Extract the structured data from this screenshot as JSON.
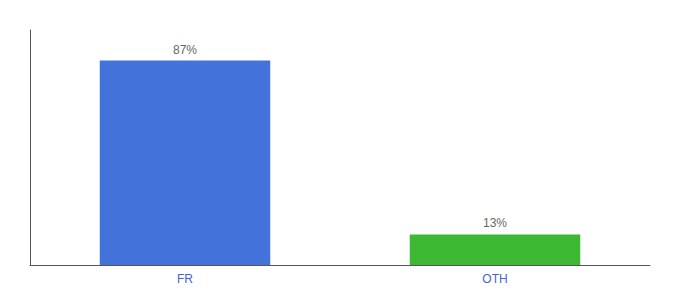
{
  "chart_data": {
    "type": "bar",
    "categories": [
      "FR",
      "OTH"
    ],
    "values": [
      87,
      13
    ],
    "value_labels": [
      "87%",
      "13%"
    ],
    "colors": [
      "#4472db",
      "#3db832"
    ],
    "ylim": [
      0,
      100
    ],
    "data_labels": true,
    "tick_labels": "x",
    "grid": false
  }
}
